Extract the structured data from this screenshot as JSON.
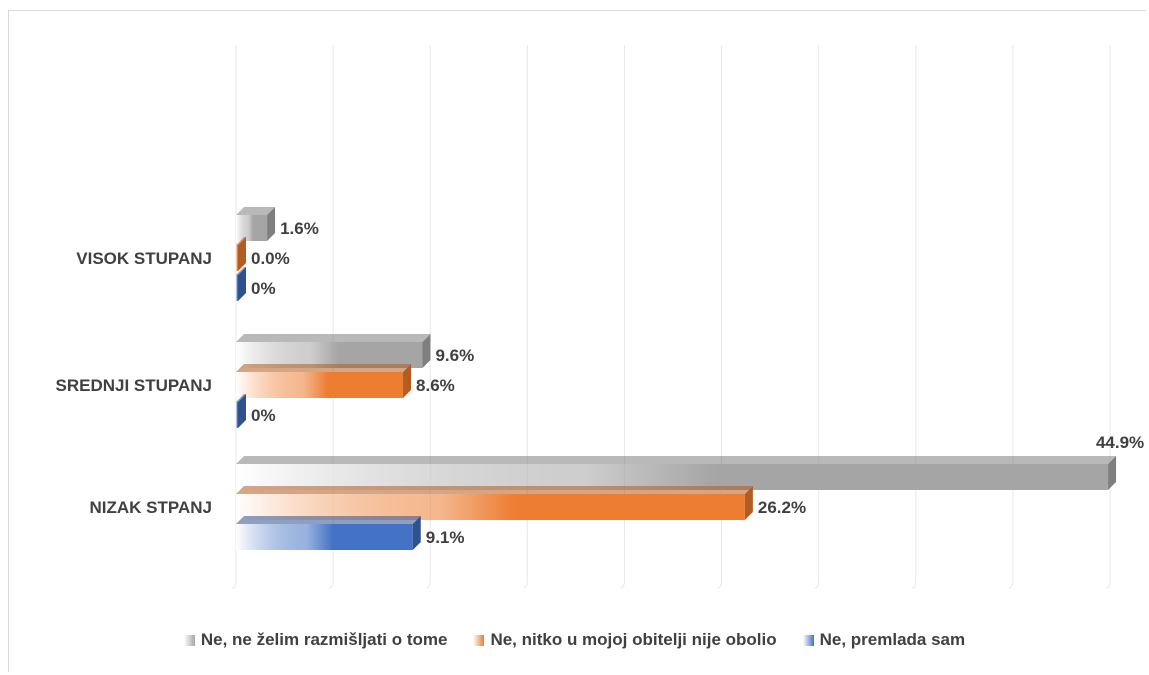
{
  "chart_data": {
    "type": "bar",
    "orientation": "horizontal",
    "grid": true,
    "legend_position": "bottom",
    "categories": [
      "VISOK STUPANJ",
      "SREDNJI STUPANJ",
      "NIZAK STPANJ"
    ],
    "series": [
      {
        "name": "Ne, ne želim razmišljati o tome",
        "values": [
          1.6,
          9.6,
          44.9
        ],
        "labels": [
          "1.6%",
          "9.6%",
          "44.9%"
        ],
        "color": "#a5a5a5",
        "dark": "#7f7f7f"
      },
      {
        "name": "Ne, nitko u mojoj obitelji nije obolio",
        "values": [
          0.0,
          8.6,
          26.2
        ],
        "labels": [
          "0.0%",
          "8.6%",
          "26.2%"
        ],
        "color": "#ed7d31",
        "dark": "#b35c22"
      },
      {
        "name": "Ne, premlada sam",
        "values": [
          0,
          0,
          9.1
        ],
        "labels": [
          "0%",
          "0%",
          "9.1%"
        ],
        "color": "#4472c4",
        "dark": "#2f528f"
      }
    ],
    "xlim": [
      0,
      45
    ]
  }
}
